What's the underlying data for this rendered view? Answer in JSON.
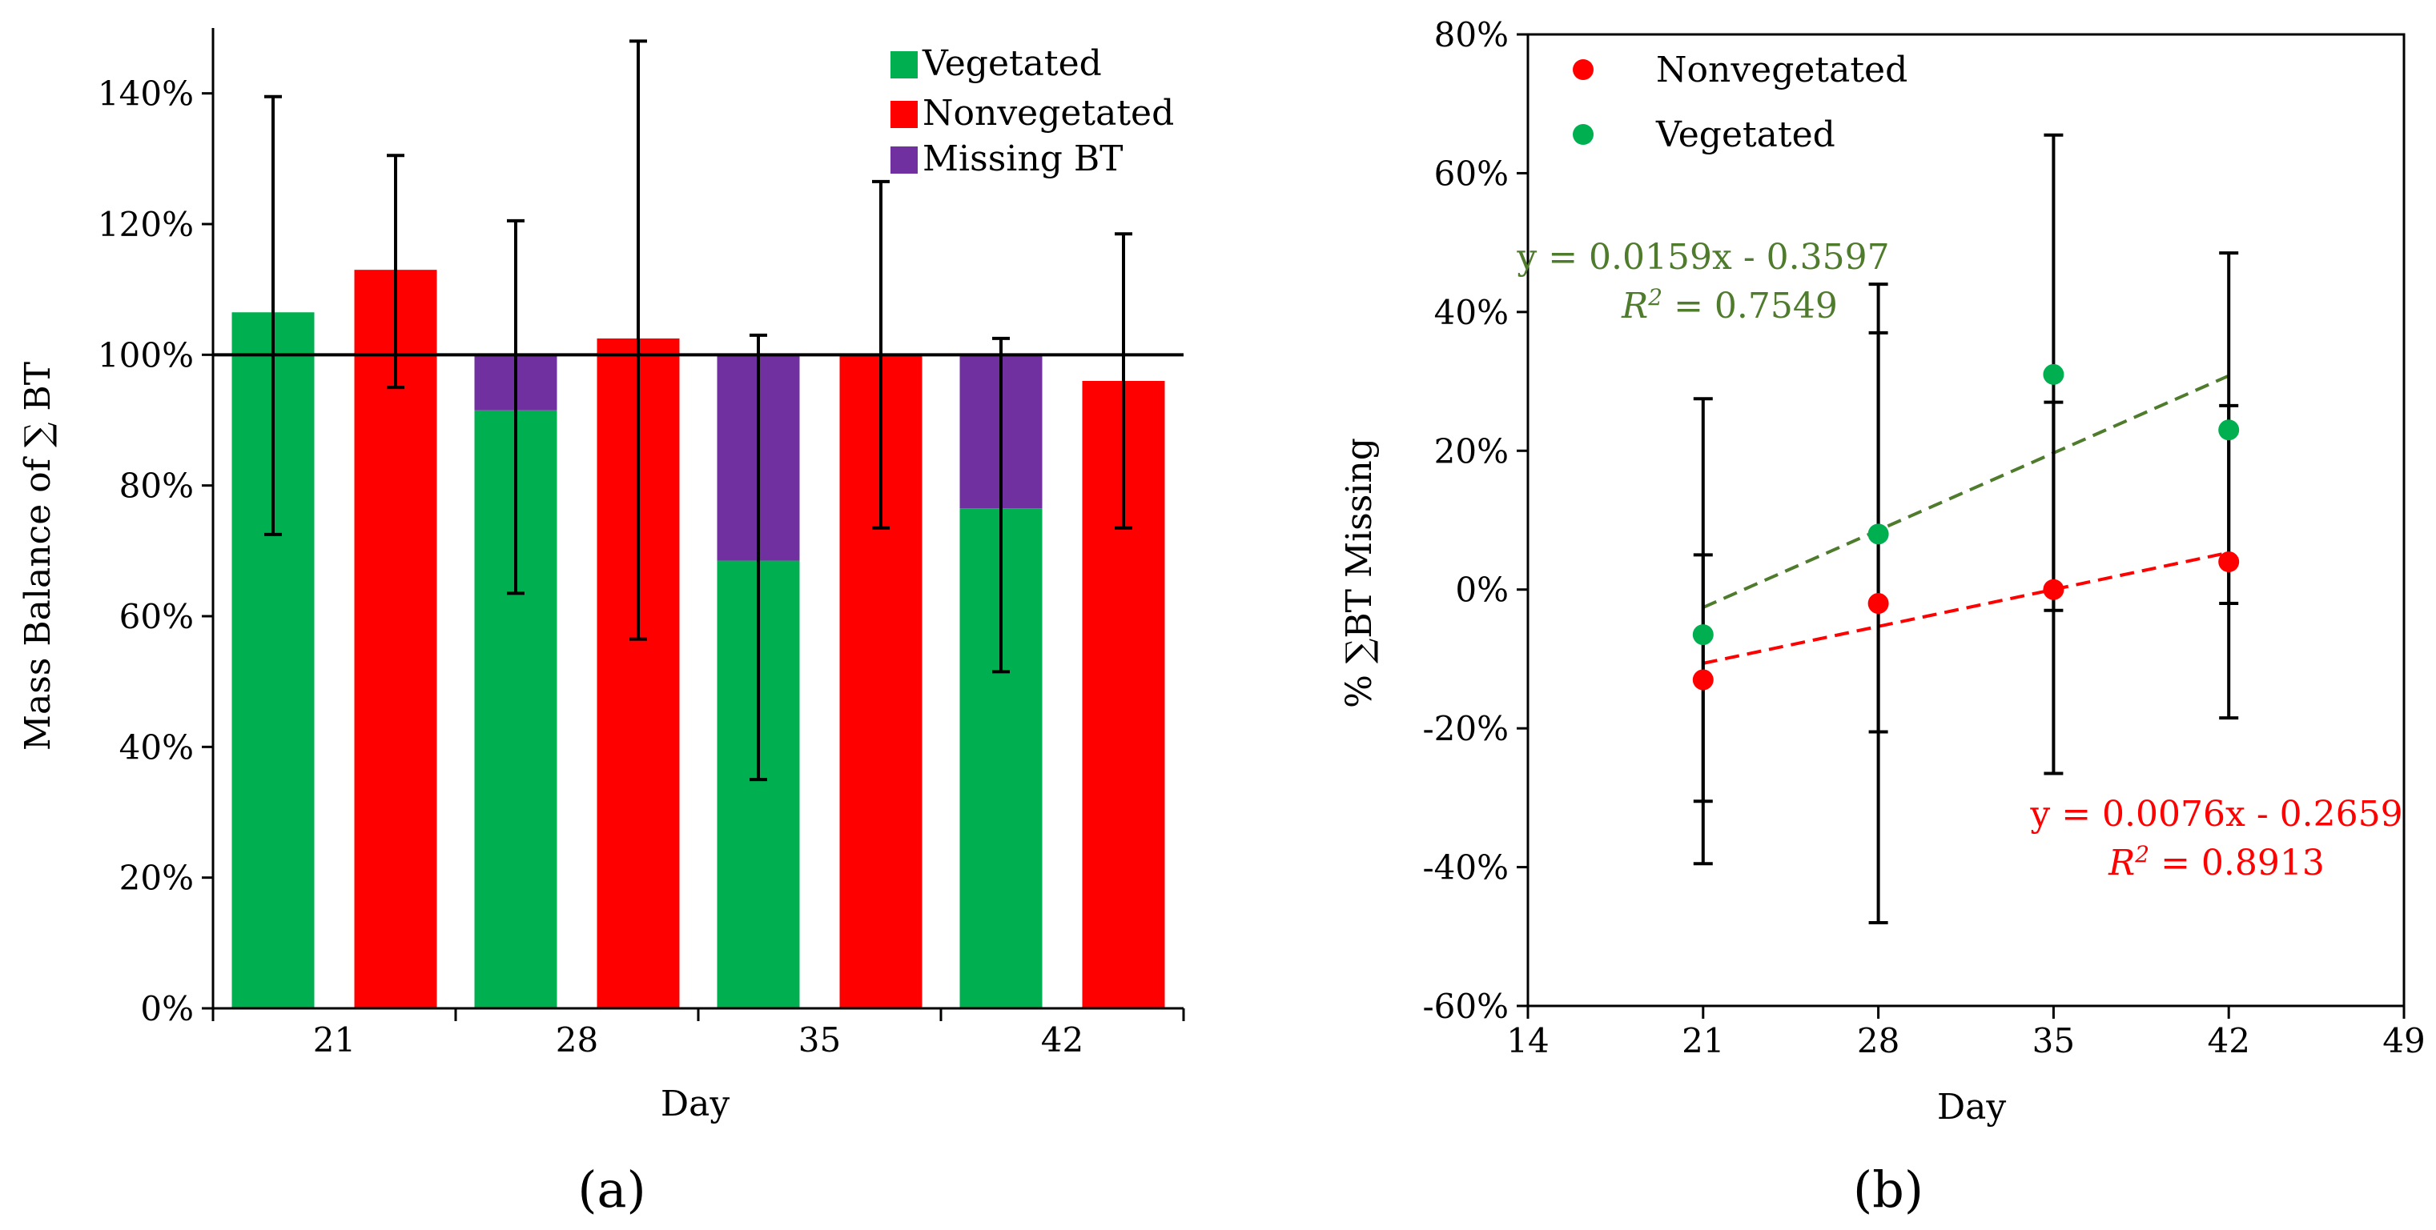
{
  "colors": {
    "vegetated": "#00b050",
    "nonvegetated": "#ff0000",
    "missing": "#7030a0",
    "veg_trend": "#4f7b2c",
    "nonveg_trend": "#ff0000",
    "axis": "#000000"
  },
  "panels": {
    "a_label": "(a)",
    "b_label": "(b)"
  },
  "chart_data": [
    {
      "id": "a",
      "type": "bar",
      "title": "",
      "xlabel": "Day",
      "ylabel": "Mass Balance of ∑ BT",
      "ylim": [
        0,
        1.5
      ],
      "yticks": [
        0,
        0.2,
        0.4,
        0.6,
        0.8,
        1.0,
        1.2,
        1.4
      ],
      "ytick_labels": [
        "0%",
        "20%",
        "40%",
        "60%",
        "80%",
        "100%",
        "120%",
        "140%"
      ],
      "categories": [
        "21",
        "28",
        "35",
        "42"
      ],
      "reference_line": 1.0,
      "legend": [
        "Vegetated",
        "Nonvegetated",
        "Missing BT"
      ],
      "legend_position": "top-right",
      "series": [
        {
          "name": "Vegetated",
          "values": [
            1.065,
            0.915,
            0.685,
            0.765
          ],
          "error_low": [
            0.725,
            0.635,
            0.35,
            0.515
          ],
          "error_high": [
            1.395,
            1.205,
            1.03,
            1.025
          ]
        },
        {
          "name": "Nonvegetated",
          "values": [
            1.13,
            1.025,
            1.0,
            0.96
          ],
          "error_low": [
            0.95,
            0.565,
            0.735,
            0.735
          ],
          "error_high": [
            1.305,
            1.48,
            1.265,
            1.185
          ]
        },
        {
          "name": "Missing BT",
          "stack_on": "Vegetated",
          "values": [
            0,
            0.085,
            0.315,
            0.235
          ]
        }
      ]
    },
    {
      "id": "b",
      "type": "scatter",
      "title": "",
      "xlabel": "Day",
      "ylabel": "% ∑BT Missing",
      "xlim": [
        14,
        49
      ],
      "xticks": [
        14,
        21,
        28,
        35,
        42,
        49
      ],
      "ylim": [
        -0.6,
        0.8
      ],
      "yticks": [
        -0.6,
        -0.4,
        -0.2,
        0,
        0.2,
        0.4,
        0.6,
        0.8
      ],
      "ytick_labels": [
        "-60%",
        "-40%",
        "-20%",
        "0%",
        "20%",
        "40%",
        "60%",
        "80%"
      ],
      "legend": [
        "Nonvegetated",
        "Vegetated"
      ],
      "legend_position": "top-left",
      "series": [
        {
          "name": "Nonvegetated",
          "x": [
            21,
            28,
            35,
            42
          ],
          "y": [
            -0.13,
            -0.02,
            0.0,
            0.04
          ],
          "error_low": [
            -0.395,
            -0.48,
            -0.265,
            -0.185
          ],
          "error_high": [
            0.05,
            0.37,
            0.27,
            0.265
          ],
          "trend": {
            "slope": 0.0076,
            "intercept": -0.2659,
            "equation": "y = 0.0076x - 0.2659",
            "r2_label": "R",
            "r2_value": " = 0.8913"
          }
        },
        {
          "name": "Vegetated",
          "x": [
            21,
            28,
            35,
            42
          ],
          "y": [
            -0.065,
            0.08,
            0.31,
            0.23
          ],
          "error_low": [
            -0.305,
            -0.205,
            -0.03,
            -0.02
          ],
          "error_high": [
            0.275,
            0.44,
            0.655,
            0.485
          ],
          "trend": {
            "slope": 0.0159,
            "intercept": -0.3597,
            "equation": "y = 0.0159x - 0.3597",
            "r2_label": "R",
            "r2_value": " = 0.7549"
          }
        }
      ]
    }
  ]
}
